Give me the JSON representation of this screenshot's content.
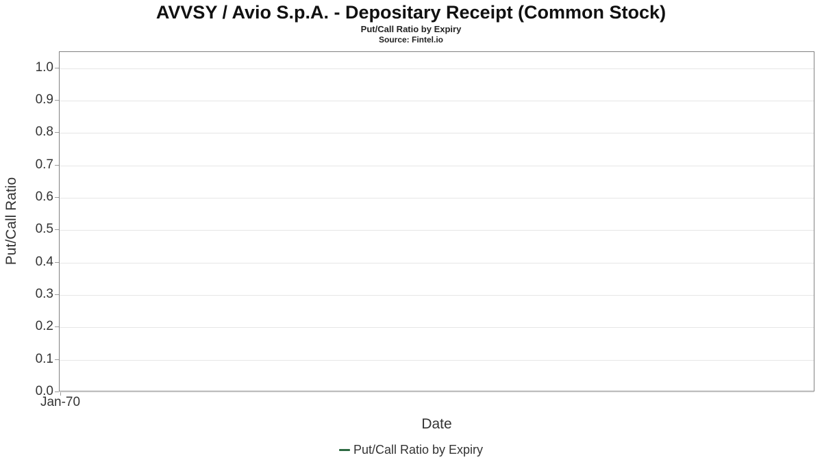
{
  "chart_data": {
    "type": "line",
    "title": "AVVSY / Avio S.p.A. - Depositary Receipt (Common Stock)",
    "subtitle": "Put/Call Ratio by Expiry",
    "source": "Source: Fintel.io",
    "xlabel": "Date",
    "ylabel": "Put/Call Ratio",
    "ylim": [
      0,
      1.05
    ],
    "y_ticks": [
      "0.0",
      "0.1",
      "0.2",
      "0.3",
      "0.4",
      "0.5",
      "0.6",
      "0.7",
      "0.8",
      "0.9",
      "1.0"
    ],
    "x_tick_labels": [
      "Jan-70"
    ],
    "grid": "horizontal",
    "legend_position": "bottom-center",
    "series": [
      {
        "name": "Put/Call Ratio by Expiry",
        "color": "#2d6a42",
        "x": [],
        "values": []
      }
    ],
    "colors": {
      "plot_border": "#808080",
      "gridline": "#e6e6e6",
      "tick": "#999999",
      "axis_text": "#333333",
      "title_text": "#111111",
      "series_green": "#2d6a42"
    }
  }
}
